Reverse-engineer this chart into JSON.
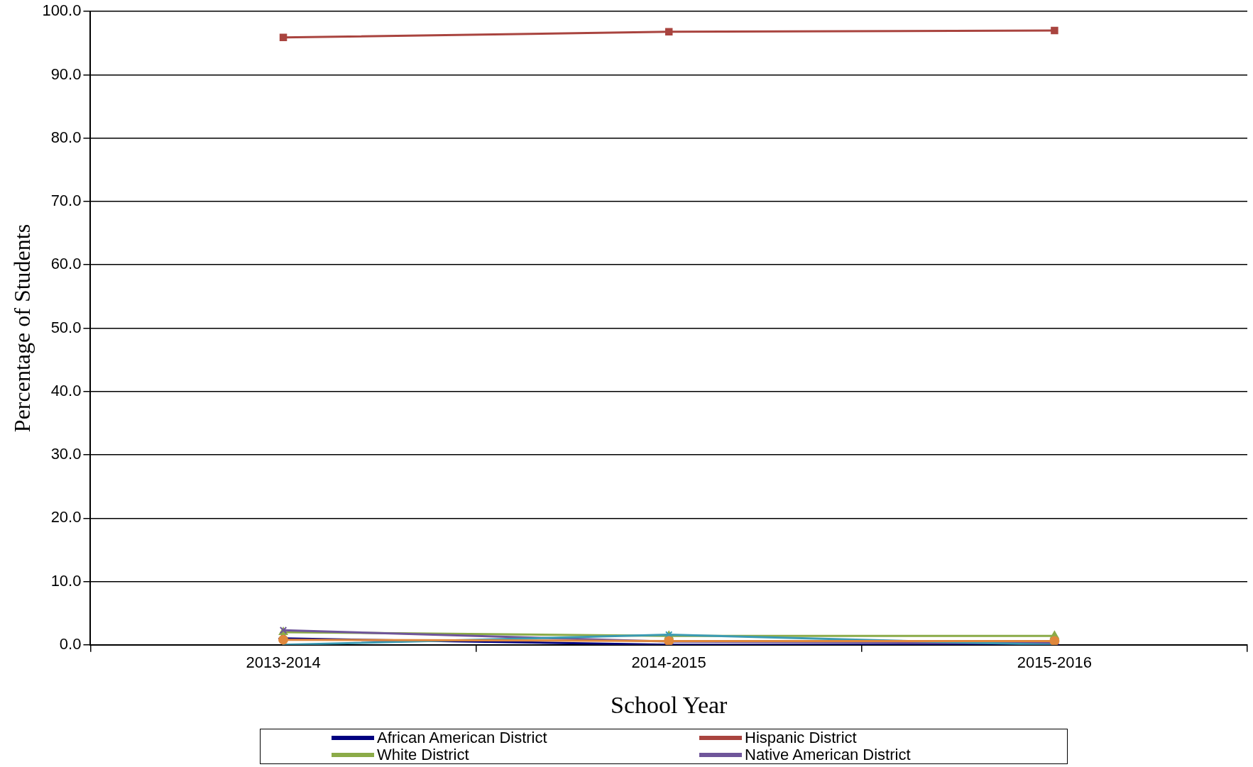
{
  "chart_data": {
    "type": "line",
    "xlabel": "School Year",
    "ylabel": "Percentage of Students",
    "categories": [
      "2013-2014",
      "2014-2015",
      "2015-2016"
    ],
    "series": [
      {
        "name": "African American District",
        "color": "#000080",
        "marker": "diamond",
        "values": [
          1.0,
          0.0,
          0.0
        ]
      },
      {
        "name": "Hispanic District",
        "color": "#a9443f",
        "marker": "square",
        "values": [
          95.9,
          96.8,
          97.0
        ]
      },
      {
        "name": "White District",
        "color": "#8bab48",
        "marker": "triangle",
        "values": [
          2.0,
          1.4,
          1.4
        ]
      },
      {
        "name": "Native American District",
        "color": "#6f559a",
        "marker": "cross",
        "values": [
          2.3,
          0.5,
          0.3
        ]
      },
      {
        "color": "#3b9bb3",
        "marker": "cross",
        "values": [
          0.0,
          1.6,
          0.0
        ]
      },
      {
        "color": "#e0883c",
        "marker": "circle",
        "values": [
          0.8,
          0.6,
          0.6
        ]
      }
    ],
    "ylim": [
      0,
      100
    ],
    "yticks": [
      {
        "value": 0,
        "label": "0.0"
      },
      {
        "value": 10,
        "label": "10.0"
      },
      {
        "value": 20,
        "label": "20.0"
      },
      {
        "value": 30,
        "label": "30.0"
      },
      {
        "value": 40,
        "label": "40.0"
      },
      {
        "value": 50,
        "label": "50.0"
      },
      {
        "value": 60,
        "label": "60.0"
      },
      {
        "value": 70,
        "label": "70.0"
      },
      {
        "value": 80,
        "label": "80.0"
      },
      {
        "value": 90,
        "label": "90.0"
      },
      {
        "value": 100,
        "label": "100.0"
      }
    ],
    "grid": "y",
    "legend": "bottom"
  }
}
